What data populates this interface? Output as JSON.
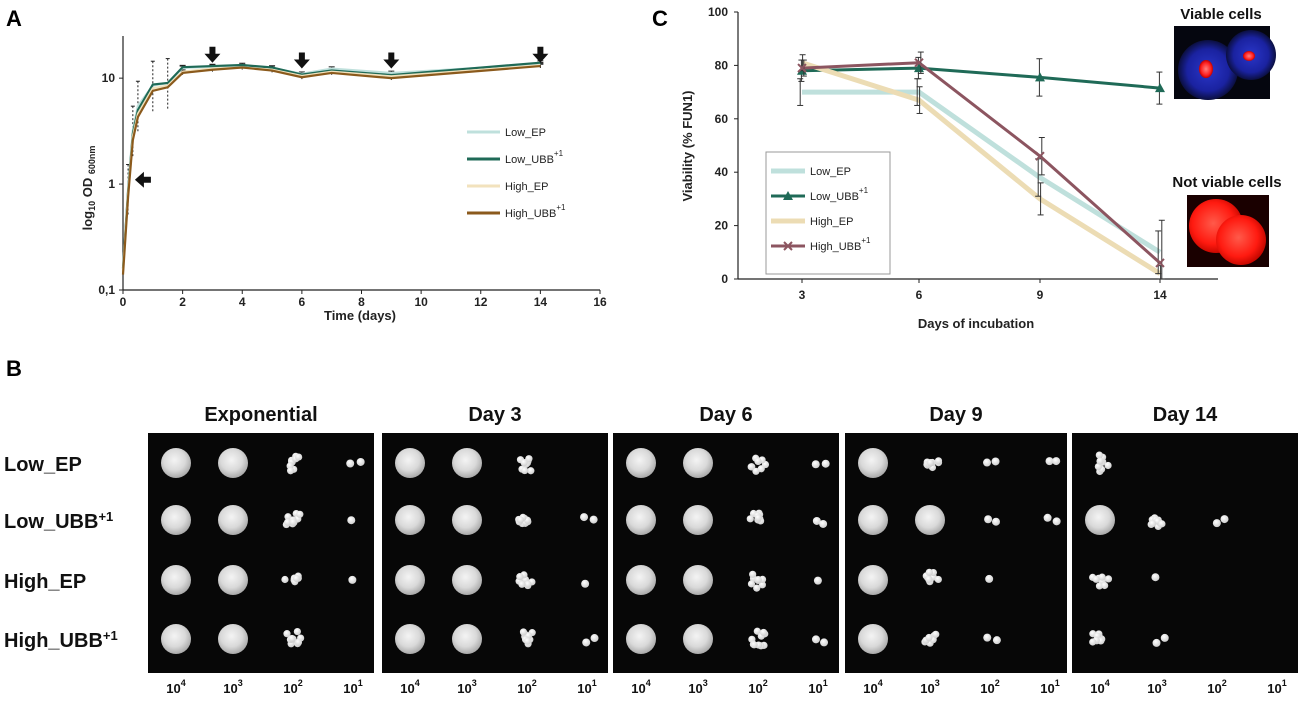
{
  "panel_labels": {
    "a": "A",
    "b": "B",
    "c": "C"
  },
  "colors": {
    "low_ep": "#bfe0dc",
    "low_ubb": "#1f6a57",
    "high_ep": "#f2e2bd",
    "high_ubb": "#8b5a1c",
    "high_ubb_c": "#8c5560",
    "high_ep_c": "#ecdcb4"
  },
  "chart_data": [
    {
      "id": "A",
      "type": "line",
      "xlabel": "Time (days)",
      "ylabel": "log10 OD 600nm",
      "ylabel_parts": {
        "log": "log",
        "log_sub": "10",
        "od": " OD ",
        "od_sub": "600nm"
      },
      "xlim": [
        0,
        16
      ],
      "ylim": [
        0.1,
        25
      ],
      "yscale": "log",
      "x_ticks": [
        0,
        2,
        4,
        6,
        8,
        10,
        12,
        14,
        16
      ],
      "y_ticks": [
        0.1,
        1,
        10
      ],
      "y_tick_labels": [
        "0,1",
        "1",
        "10"
      ],
      "legend": [
        {
          "name": "Low_EP",
          "sup": ""
        },
        {
          "name": "Low_UBB",
          "sup": "+1"
        },
        {
          "name": "High_EP",
          "sup": ""
        },
        {
          "name": "High_UBB",
          "sup": "+1"
        }
      ],
      "x": [
        0,
        0.17,
        0.33,
        0.5,
        1,
        1.5,
        2,
        3,
        4,
        5,
        6,
        7,
        9,
        14
      ],
      "series": [
        {
          "name": "Low_EP",
          "values": [
            0.16,
            0.9,
            3.2,
            5.5,
            8.5,
            9.0,
            12.5,
            12.8,
            13.0,
            12.5,
            11.0,
            12.3,
            11.2,
            13.5
          ]
        },
        {
          "name": "Low_UBB+1",
          "values": [
            0.16,
            0.85,
            3.0,
            5.0,
            8.7,
            9.0,
            12.7,
            13.0,
            13.3,
            12.6,
            10.8,
            11.8,
            10.7,
            14.0
          ]
        },
        {
          "name": "High_EP",
          "values": [
            0.15,
            0.8,
            2.8,
            4.6,
            8.0,
            8.5,
            11.5,
            12.3,
            12.6,
            12.0,
            10.5,
            11.5,
            10.4,
            13.2
          ]
        },
        {
          "name": "High_UBB+1",
          "values": [
            0.14,
            0.75,
            2.6,
            4.3,
            7.6,
            8.2,
            11.2,
            12.0,
            12.6,
            11.8,
            10.2,
            11.2,
            10.0,
            13.0
          ]
        }
      ],
      "arrows": [
        {
          "direction": "left",
          "x": 0.5,
          "y": 1.1
        },
        {
          "direction": "down",
          "x": 3,
          "y": 17
        },
        {
          "direction": "down",
          "x": 6,
          "y": 15
        },
        {
          "direction": "down",
          "x": 9,
          "y": 15
        },
        {
          "direction": "down",
          "x": 14,
          "y": 17
        }
      ]
    },
    {
      "id": "C",
      "type": "line",
      "xlabel": "Days of incubation",
      "ylabel": "Viability (% FUN1)",
      "categories": [
        "3",
        "6",
        "9",
        "14"
      ],
      "ylim": [
        0,
        100
      ],
      "y_ticks": [
        0,
        20,
        40,
        60,
        80,
        100
      ],
      "legend": [
        {
          "name": "Low_EP",
          "sup": ""
        },
        {
          "name": "Low_UBB",
          "sup": "+1"
        },
        {
          "name": "High_EP",
          "sup": ""
        },
        {
          "name": "High_UBB",
          "sup": "+1"
        }
      ],
      "series": [
        {
          "name": "Low_EP",
          "values": [
            70,
            70,
            38,
            10
          ],
          "errors": [
            5,
            5,
            7,
            8
          ]
        },
        {
          "name": "Low_UBB+1",
          "values": [
            78,
            79,
            75.5,
            71.5
          ],
          "errors": [
            4,
            4,
            7,
            6
          ]
        },
        {
          "name": "High_EP",
          "values": [
            81,
            67,
            30,
            2
          ],
          "errors": [
            3,
            5,
            6,
            3
          ]
        },
        {
          "name": "High_UBB+1",
          "values": [
            79,
            81,
            46,
            6
          ],
          "errors": [
            3,
            4,
            7,
            16
          ]
        }
      ],
      "insets": [
        {
          "title": "Viable cells"
        },
        {
          "title": "Not viable cells"
        }
      ]
    }
  ],
  "spot_assay": {
    "panel": "B",
    "timepoints": [
      "Exponential",
      "Day 3",
      "Day 6",
      "Day 9",
      "Day 14"
    ],
    "rows": [
      {
        "base": "Low_EP",
        "sup": ""
      },
      {
        "base": "Low_UBB",
        "sup": "+1"
      },
      {
        "base": "High_EP",
        "sup": ""
      },
      {
        "base": "High_UBB",
        "sup": "+1"
      }
    ],
    "dilutions": [
      {
        "base": "10",
        "exp": "4"
      },
      {
        "base": "10",
        "exp": "3"
      },
      {
        "base": "10",
        "exp": "2"
      },
      {
        "base": "10",
        "exp": "1"
      }
    ],
    "growth": [
      [
        [
          3,
          3,
          2,
          1
        ],
        [
          3,
          3,
          2,
          1
        ],
        [
          3,
          3,
          2,
          1
        ],
        [
          3,
          3,
          2,
          0
        ]
      ],
      [
        [
          3,
          3,
          2,
          0
        ],
        [
          3,
          3,
          2,
          1
        ],
        [
          3,
          3,
          2,
          1
        ],
        [
          3,
          3,
          2,
          1
        ]
      ],
      [
        [
          3,
          3,
          2,
          1
        ],
        [
          3,
          3,
          2,
          1
        ],
        [
          3,
          3,
          2,
          1
        ],
        [
          3,
          3,
          2,
          1
        ]
      ],
      [
        [
          3,
          2,
          1,
          1
        ],
        [
          3,
          3,
          1,
          1
        ],
        [
          3,
          2,
          1,
          0
        ],
        [
          3,
          2,
          1,
          0
        ]
      ],
      [
        [
          2,
          0,
          0,
          0
        ],
        [
          3,
          2,
          1,
          0
        ],
        [
          2,
          1,
          0,
          0
        ],
        [
          2,
          1,
          0,
          0
        ]
      ]
    ]
  }
}
